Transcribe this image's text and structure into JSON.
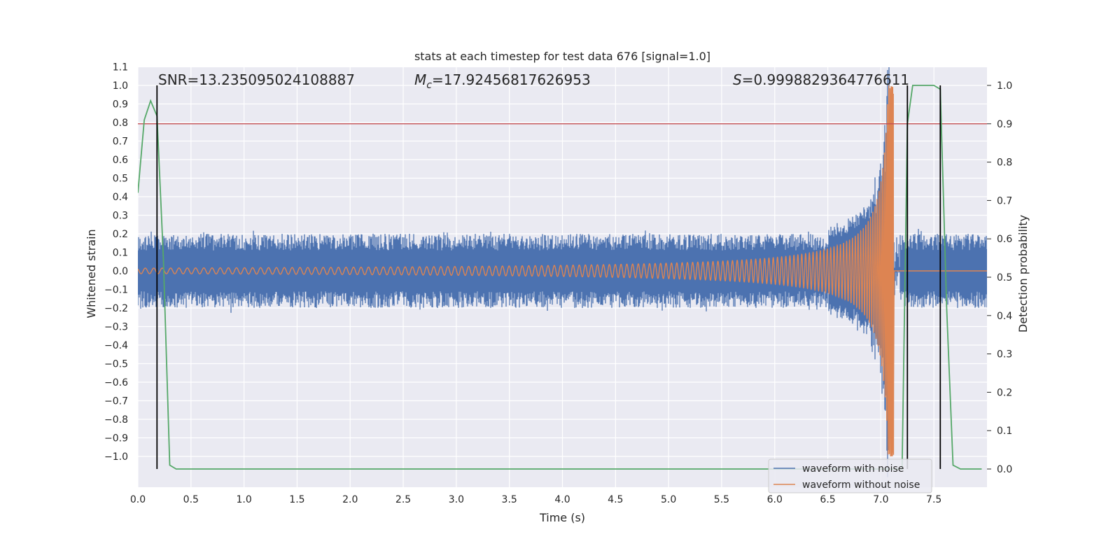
{
  "chart_data": {
    "type": "line",
    "title": "stats at each timestep for test data 676 [signal=1.0]",
    "xlabel": "Time (s)",
    "ylabel_left": "Whitened strain",
    "ylabel_right": "Detection probability",
    "xlim": [
      0.0,
      8.0
    ],
    "ylim_left": [
      -1.1,
      1.1
    ],
    "ylim_right": [
      0.0,
      1.0
    ],
    "grid": true,
    "x_ticks": [
      0.0,
      0.5,
      1.0,
      1.5,
      2.0,
      2.5,
      3.0,
      3.5,
      4.0,
      4.5,
      5.0,
      5.5,
      6.0,
      6.5,
      7.0,
      7.5
    ],
    "x_tick_labels": [
      "0.0",
      "0.5",
      "1.0",
      "1.5",
      "2.0",
      "2.5",
      "3.0",
      "3.5",
      "4.0",
      "4.5",
      "5.0",
      "5.5",
      "6.0",
      "6.5",
      "7.0",
      "7.5"
    ],
    "y_left_ticks": [
      1.1,
      1.0,
      0.9,
      0.8,
      0.7,
      0.6,
      0.5,
      0.4,
      0.3,
      0.2,
      0.1,
      0.0,
      -0.1,
      -0.2,
      -0.3,
      -0.4,
      -0.5,
      -0.6,
      -0.7,
      -0.8,
      -0.9,
      -1.0
    ],
    "y_left_tick_labels": [
      "1.1",
      "1.0",
      "0.9",
      "0.8",
      "0.7",
      "0.6",
      "0.5",
      "0.4",
      "0.3",
      "0.2",
      "0.1",
      "0.0",
      "−0.1",
      "−0.2",
      "−0.3",
      "−0.4",
      "−0.5",
      "−0.6",
      "−0.7",
      "−0.8",
      "−0.9",
      "−1.0"
    ],
    "y_right_ticks": [
      1.0,
      0.9,
      0.8,
      0.7,
      0.6,
      0.5,
      0.4,
      0.3,
      0.2,
      0.1,
      0.0
    ],
    "y_right_tick_labels": [
      "1.0",
      "0.9",
      "0.8",
      "0.7",
      "0.6",
      "0.5",
      "0.4",
      "0.3",
      "0.2",
      "0.1",
      "0.0"
    ],
    "annotations": {
      "snr": "SNR=13.235095024108887",
      "mc_symbol": "M",
      "mc_sub": "c",
      "mc_value": "=17.92456817626953",
      "s_symbol": "S",
      "s_value": "=0.9998829364776611"
    },
    "threshold": {
      "value": 0.9,
      "axis": "right",
      "color": "#c44e52"
    },
    "event_markers_x": [
      0.18,
      7.25,
      7.56
    ],
    "event_marker_range_right": [
      0.0,
      1.0
    ],
    "series": [
      {
        "name": "waveform with noise",
        "color": "#4c72b0",
        "axis": "left",
        "kind": "noise_band",
        "noise_amplitude": 0.2,
        "chirp_end": 7.12,
        "noise_end": 7.1
      },
      {
        "name": "waveform without noise",
        "color": "#dd8452",
        "axis": "left",
        "kind": "chirp",
        "start_amplitude": 0.015,
        "peak_amplitude": 1.0,
        "merger_time": 7.12
      },
      {
        "name": "detection probability",
        "color": "#55a868",
        "axis": "right",
        "x": [
          0.0,
          0.06,
          0.12,
          0.18,
          0.24,
          0.3,
          0.36,
          0.42,
          7.2,
          7.25,
          7.3,
          7.5,
          7.56,
          7.62,
          7.68,
          7.75,
          7.95
        ],
        "values": [
          0.72,
          0.91,
          0.96,
          0.92,
          0.55,
          0.01,
          0.0,
          0.0,
          0.0,
          0.9,
          1.0,
          1.0,
          0.99,
          0.42,
          0.01,
          0.0,
          0.0
        ]
      }
    ],
    "legend": {
      "placement": "bottom-right",
      "entries": [
        {
          "label": "waveform with noise",
          "color": "#4c72b0"
        },
        {
          "label": "waveform without noise",
          "color": "#dd8452"
        }
      ]
    }
  }
}
